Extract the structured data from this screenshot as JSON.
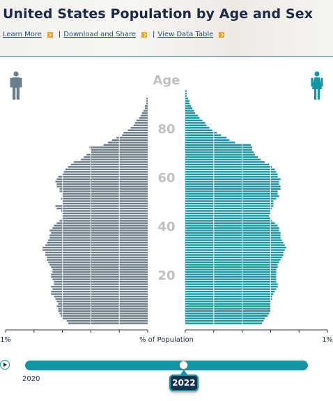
{
  "page": {
    "title": "United States Population by Age and Sex",
    "links": {
      "learn_more": "Learn More",
      "download_share": "Download and Share",
      "view_table": "View Data Table",
      "separator": "|"
    }
  },
  "icons": {
    "male": "male-person-icon",
    "female": "female-person-icon",
    "play": "play-icon",
    "chevron": "chevron-right-icon"
  },
  "colors": {
    "male": "#6b7d89",
    "female": "#1296a6",
    "accent": "#f2a01f",
    "age_label": "#c0c0c0"
  },
  "timeline": {
    "start_year": "2020",
    "current_year": "2022",
    "progress": 0.56
  },
  "chart_data": {
    "type": "bar",
    "orientation": "population-pyramid",
    "center_title": "Age",
    "xlabel": "% of Population",
    "x_left_label": "1%",
    "x_right_label": "1%",
    "xlim": [
      0,
      1.0
    ],
    "age_ticks": [
      "20",
      "40",
      "60",
      "80"
    ],
    "ages": [
      0,
      1,
      2,
      3,
      4,
      5,
      6,
      7,
      8,
      9,
      10,
      11,
      12,
      13,
      14,
      15,
      16,
      17,
      18,
      19,
      20,
      21,
      22,
      23,
      24,
      25,
      26,
      27,
      28,
      29,
      30,
      31,
      32,
      33,
      34,
      35,
      36,
      37,
      38,
      39,
      40,
      41,
      42,
      43,
      44,
      45,
      46,
      47,
      48,
      49,
      50,
      51,
      52,
      53,
      54,
      55,
      56,
      57,
      58,
      59,
      60,
      61,
      62,
      63,
      64,
      65,
      66,
      67,
      68,
      69,
      70,
      71,
      72,
      73,
      74,
      75,
      76,
      77,
      78,
      79,
      80,
      81,
      82,
      83,
      84,
      85,
      86,
      87,
      88,
      89,
      90,
      91,
      92,
      93,
      94,
      95,
      96,
      97,
      98,
      99,
      100
    ],
    "series": [
      {
        "name": "Male",
        "values": [
          0.56,
          0.57,
          0.6,
          0.61,
          0.62,
          0.63,
          0.63,
          0.64,
          0.63,
          0.64,
          0.65,
          0.66,
          0.68,
          0.68,
          0.67,
          0.68,
          0.66,
          0.66,
          0.67,
          0.68,
          0.68,
          0.67,
          0.67,
          0.68,
          0.69,
          0.7,
          0.71,
          0.71,
          0.72,
          0.72,
          0.74,
          0.74,
          0.72,
          0.71,
          0.7,
          0.69,
          0.69,
          0.68,
          0.69,
          0.67,
          0.66,
          0.64,
          0.62,
          0.6,
          0.6,
          0.6,
          0.61,
          0.64,
          0.65,
          0.6,
          0.6,
          0.61,
          0.6,
          0.6,
          0.62,
          0.62,
          0.64,
          0.64,
          0.65,
          0.64,
          0.63,
          0.6,
          0.59,
          0.58,
          0.56,
          0.54,
          0.52,
          0.47,
          0.45,
          0.43,
          0.4,
          0.4,
          0.41,
          0.31,
          0.28,
          0.25,
          0.22,
          0.18,
          0.17,
          0.14,
          0.12,
          0.1,
          0.09,
          0.08,
          0.06,
          0.05,
          0.04,
          0.03,
          0.02,
          0.02,
          0.01,
          0.01,
          0.01,
          0.0,
          0.0,
          0.0,
          0.0,
          0.0,
          0.0,
          0.0,
          0.0
        ]
      },
      {
        "name": "Female",
        "values": [
          0.54,
          0.55,
          0.56,
          0.58,
          0.59,
          0.6,
          0.6,
          0.6,
          0.6,
          0.6,
          0.61,
          0.61,
          0.62,
          0.63,
          0.64,
          0.65,
          0.65,
          0.64,
          0.64,
          0.64,
          0.64,
          0.64,
          0.64,
          0.65,
          0.65,
          0.66,
          0.67,
          0.68,
          0.69,
          0.69,
          0.7,
          0.71,
          0.7,
          0.69,
          0.68,
          0.67,
          0.67,
          0.67,
          0.66,
          0.66,
          0.65,
          0.63,
          0.61,
          0.6,
          0.59,
          0.6,
          0.6,
          0.61,
          0.62,
          0.62,
          0.62,
          0.64,
          0.66,
          0.65,
          0.65,
          0.67,
          0.67,
          0.66,
          0.66,
          0.67,
          0.65,
          0.65,
          0.64,
          0.63,
          0.61,
          0.59,
          0.56,
          0.53,
          0.51,
          0.49,
          0.48,
          0.47,
          0.47,
          0.46,
          0.35,
          0.31,
          0.29,
          0.25,
          0.22,
          0.19,
          0.17,
          0.15,
          0.14,
          0.12,
          0.1,
          0.09,
          0.07,
          0.06,
          0.05,
          0.04,
          0.03,
          0.03,
          0.02,
          0.01,
          0.01,
          0.01,
          0.0,
          0.0,
          0.0,
          0.0,
          0.0
        ]
      }
    ],
    "grid": true
  }
}
